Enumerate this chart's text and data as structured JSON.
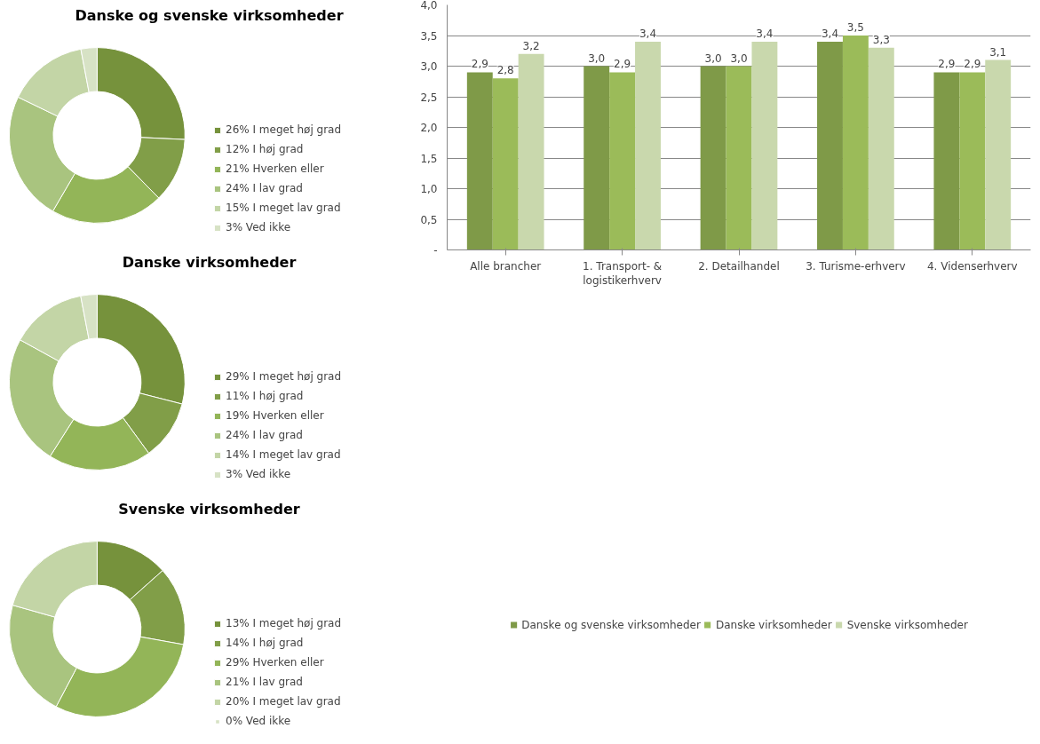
{
  "chart_data": [
    {
      "type": "donut",
      "title": "Danske og svenske virksomheder",
      "categories": [
        "I meget høj grad",
        "I høj grad",
        "Hverken eller",
        "I lav grad",
        "I meget lav grad",
        "Ved ikke"
      ],
      "values": [
        26,
        12,
        21,
        24,
        15,
        3
      ],
      "value_labels": [
        "26%",
        "12%",
        "21%",
        "24%",
        "15%",
        "3%"
      ],
      "colors": [
        "#76923c",
        "#819e48",
        "#93b558",
        "#a9c47f",
        "#c3d5a6",
        "#d7e2c5"
      ],
      "legend": "right"
    },
    {
      "type": "donut",
      "title": "Danske virksomheder",
      "categories": [
        "I meget høj grad",
        "I høj grad",
        "Hverken eller",
        "I lav grad",
        "I meget lav grad",
        "Ved ikke"
      ],
      "values": [
        29,
        11,
        19,
        24,
        14,
        3
      ],
      "value_labels": [
        "29%",
        "11%",
        "19%",
        "24%",
        "14%",
        "3%"
      ],
      "colors": [
        "#76923c",
        "#819e48",
        "#93b558",
        "#a9c47f",
        "#c3d5a6",
        "#d7e2c5"
      ],
      "legend": "right"
    },
    {
      "type": "donut",
      "title": "Svenske virksomheder",
      "categories": [
        "I meget høj grad",
        "I høj grad",
        "Hverken eller",
        "I lav grad",
        "I meget lav grad",
        "Ved ikke"
      ],
      "values": [
        13,
        14,
        29,
        21,
        20,
        0
      ],
      "value_labels": [
        "13%",
        "14%",
        "29%",
        "21%",
        "20%",
        "0%"
      ],
      "colors": [
        "#76923c",
        "#819e48",
        "#93b558",
        "#a9c47f",
        "#c3d5a6",
        "#d7e2c5"
      ],
      "legend": "right"
    },
    {
      "type": "bar",
      "categories": [
        "Alle brancher",
        "1. Transport- & logistikerhverv",
        "2. Detailhandel",
        "3. Turisme-erhverv",
        "4. Videnserhverv"
      ],
      "series": [
        {
          "name": "Danske og svenske virksomheder",
          "color": "#7f9a48",
          "values": [
            2.9,
            3.0,
            3.0,
            3.4,
            2.9
          ],
          "value_labels": [
            "2,9",
            "3,0",
            "3,0",
            "3,4",
            "2,9"
          ]
        },
        {
          "name": "Danske virksomheder",
          "color": "#9bbb59",
          "values": [
            2.8,
            2.9,
            3.0,
            3.5,
            2.9
          ],
          "value_labels": [
            "2,8",
            "2,9",
            "3,0",
            "3,5",
            "2,9"
          ]
        },
        {
          "name": "Svenske virksomheder",
          "color": "#c9d8ad",
          "values": [
            3.2,
            3.4,
            3.4,
            3.3,
            3.1
          ],
          "value_labels": [
            "3,2",
            "3,4",
            "3,4",
            "3,3",
            "3,1"
          ]
        }
      ],
      "ylim": [
        0,
        4.0
      ],
      "yticks": [
        {
          "value": 0,
          "label": "-"
        },
        {
          "value": 0.5,
          "label": "0,5"
        },
        {
          "value": 1.0,
          "label": "1,0"
        },
        {
          "value": 1.5,
          "label": "1,5"
        },
        {
          "value": 2.0,
          "label": "2,0"
        },
        {
          "value": 2.5,
          "label": "2,5"
        },
        {
          "value": 3.0,
          "label": "3,0"
        },
        {
          "value": 3.5,
          "label": "3,5"
        },
        {
          "value": 4.0,
          "label": "4,0"
        }
      ],
      "grid": "y",
      "legend": "bottom"
    }
  ]
}
